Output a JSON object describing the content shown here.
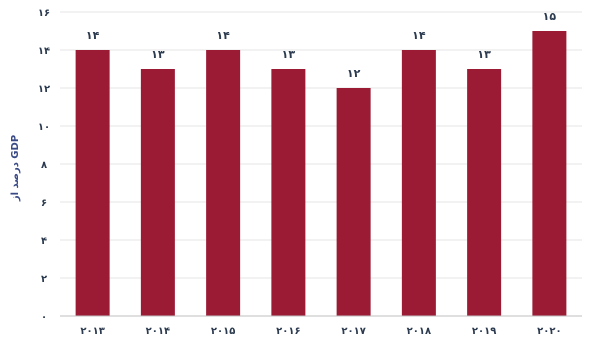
{
  "chart_data": {
    "type": "bar",
    "categories": [
      "۲۰۱۳",
      "۲۰۱۴",
      "۲۰۱۵",
      "۲۰۱۶",
      "۲۰۱۷",
      "۲۰۱۸",
      "۲۰۱۹",
      "۲۰۲۰"
    ],
    "values": [
      14,
      13,
      14,
      13,
      12,
      14,
      13,
      15
    ],
    "value_labels": [
      "۱۴",
      "۱۳",
      "۱۴",
      "۱۳",
      "۱۲",
      "۱۴",
      "۱۳",
      "۱۵"
    ],
    "yticks": [
      0,
      2,
      4,
      6,
      8,
      10,
      12,
      14,
      16
    ],
    "ytick_labels": [
      "۰",
      "۲",
      "۴",
      "۶",
      "۸",
      "۱۰",
      "۱۲",
      "۱۴",
      "۱۶"
    ],
    "ylim": [
      0,
      16
    ],
    "title": "",
    "xlabel": "",
    "ylabel": "درصد از GDP",
    "grid": true,
    "bar_color": "#9b1b35"
  }
}
